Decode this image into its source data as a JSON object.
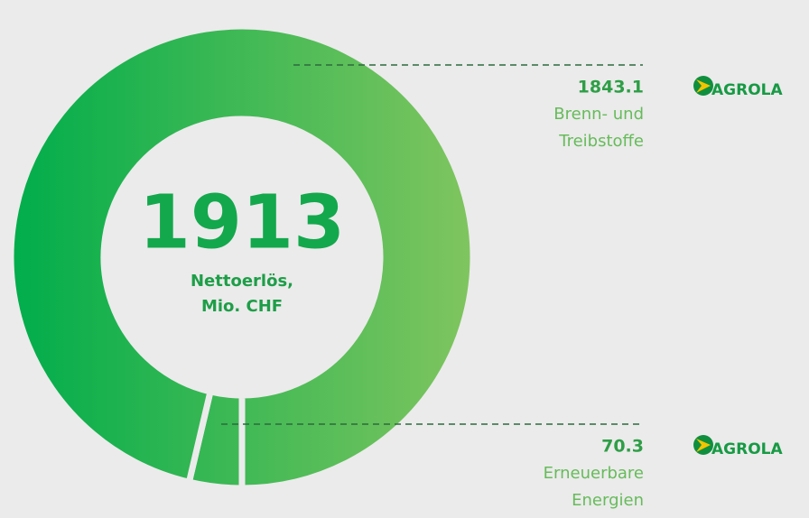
{
  "chart_data": {
    "type": "donut",
    "total": "1913",
    "center_label": [
      "Nettoerlös,",
      "Mio. CHF"
    ],
    "categories": [
      [
        "Brenn- und",
        "Treibstoffe"
      ],
      [
        "Erneuerbare",
        "Energien"
      ]
    ],
    "values": [
      1843.1,
      70.3
    ],
    "brands": [
      "AGROLA",
      "AGROLA"
    ],
    "colors": [
      "#00ad4b",
      "#80c55f"
    ]
  }
}
